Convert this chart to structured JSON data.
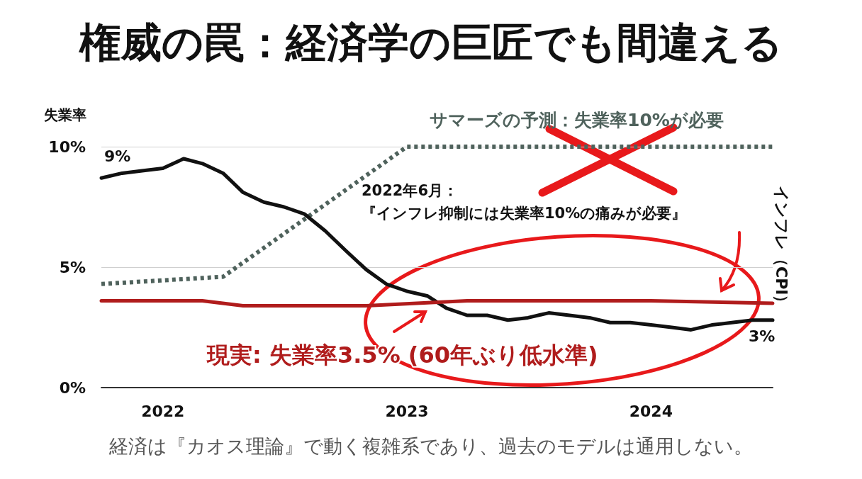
{
  "chart_data": {
    "type": "line",
    "title": "権威の罠：経済学の巨匠でも間違える",
    "ylabel": "失業率",
    "x": [
      "2021-10",
      "2021-11",
      "2021-12",
      "2022-01",
      "2022-02",
      "2022-03",
      "2022-04",
      "2022-05",
      "2022-06",
      "2022-07",
      "2022-08",
      "2022-09",
      "2022-10",
      "2022-11",
      "2022-12",
      "2023-01",
      "2023-02",
      "2023-03",
      "2023-04",
      "2023-05",
      "2023-06",
      "2023-07",
      "2023-08",
      "2023-09",
      "2023-10",
      "2023-11",
      "2023-12",
      "2024-01",
      "2024-02",
      "2024-03",
      "2024-04",
      "2024-05",
      "2024-06",
      "2024-07"
    ],
    "series": [
      {
        "name": "インフレ（CPI）",
        "color": "#111111",
        "line_style": "solid",
        "values": [
          8.7,
          8.9,
          9.0,
          9.1,
          9.5,
          9.3,
          8.9,
          8.1,
          7.7,
          7.5,
          7.2,
          6.5,
          5.7,
          4.9,
          4.3,
          4.0,
          3.8,
          3.3,
          3.0,
          3.0,
          2.8,
          2.9,
          3.1,
          3.0,
          2.9,
          2.7,
          2.7,
          2.6,
          2.5,
          2.4,
          2.6,
          2.7,
          2.8,
          2.8
        ]
      },
      {
        "name": "サマーズの予測：失業率10%が必要",
        "color": "#4f625c",
        "line_style": "dotted",
        "x": [
          "2021-10",
          "2022-04",
          "2023-01",
          "2024-07"
        ],
        "values": [
          4.3,
          4.6,
          10,
          10
        ]
      },
      {
        "name": "現実: 失業率3.5% (60年ぶり低水準)",
        "color": "#b01c1c",
        "line_style": "solid",
        "x": [
          "2021-10",
          "2022-03",
          "2022-05",
          "2022-11",
          "2023-04",
          "2024-01",
          "2024-07"
        ],
        "values": [
          3.6,
          3.6,
          3.4,
          3.4,
          3.6,
          3.6,
          3.5
        ]
      }
    ],
    "xlim": [
      "2021-10",
      "2024-07"
    ],
    "xticks": [
      {
        "value": "2022-01",
        "label": "2022"
      },
      {
        "value": "2023-01",
        "label": "2023"
      },
      {
        "value": "2024-01",
        "label": "2024"
      }
    ],
    "ylim": [
      0,
      10
    ],
    "yticks": [
      {
        "value": 0,
        "label": "0%"
      },
      {
        "value": 5,
        "label": "5%"
      },
      {
        "value": 10,
        "label": "10%"
      }
    ],
    "grid": "y",
    "legend": false,
    "marker": "none",
    "annotations": [
      {
        "text": "9%",
        "x": "2021-10",
        "y": 8.7
      },
      {
        "text": "3%",
        "x": "2024-07",
        "y": 2.8
      },
      "2022年6月：",
      "『インフレ抑制には失業率10%の痛みが必要』",
      "経済は『カオス理論』で動く複雑系であり、過去のモデルは通用しない。"
    ]
  }
}
